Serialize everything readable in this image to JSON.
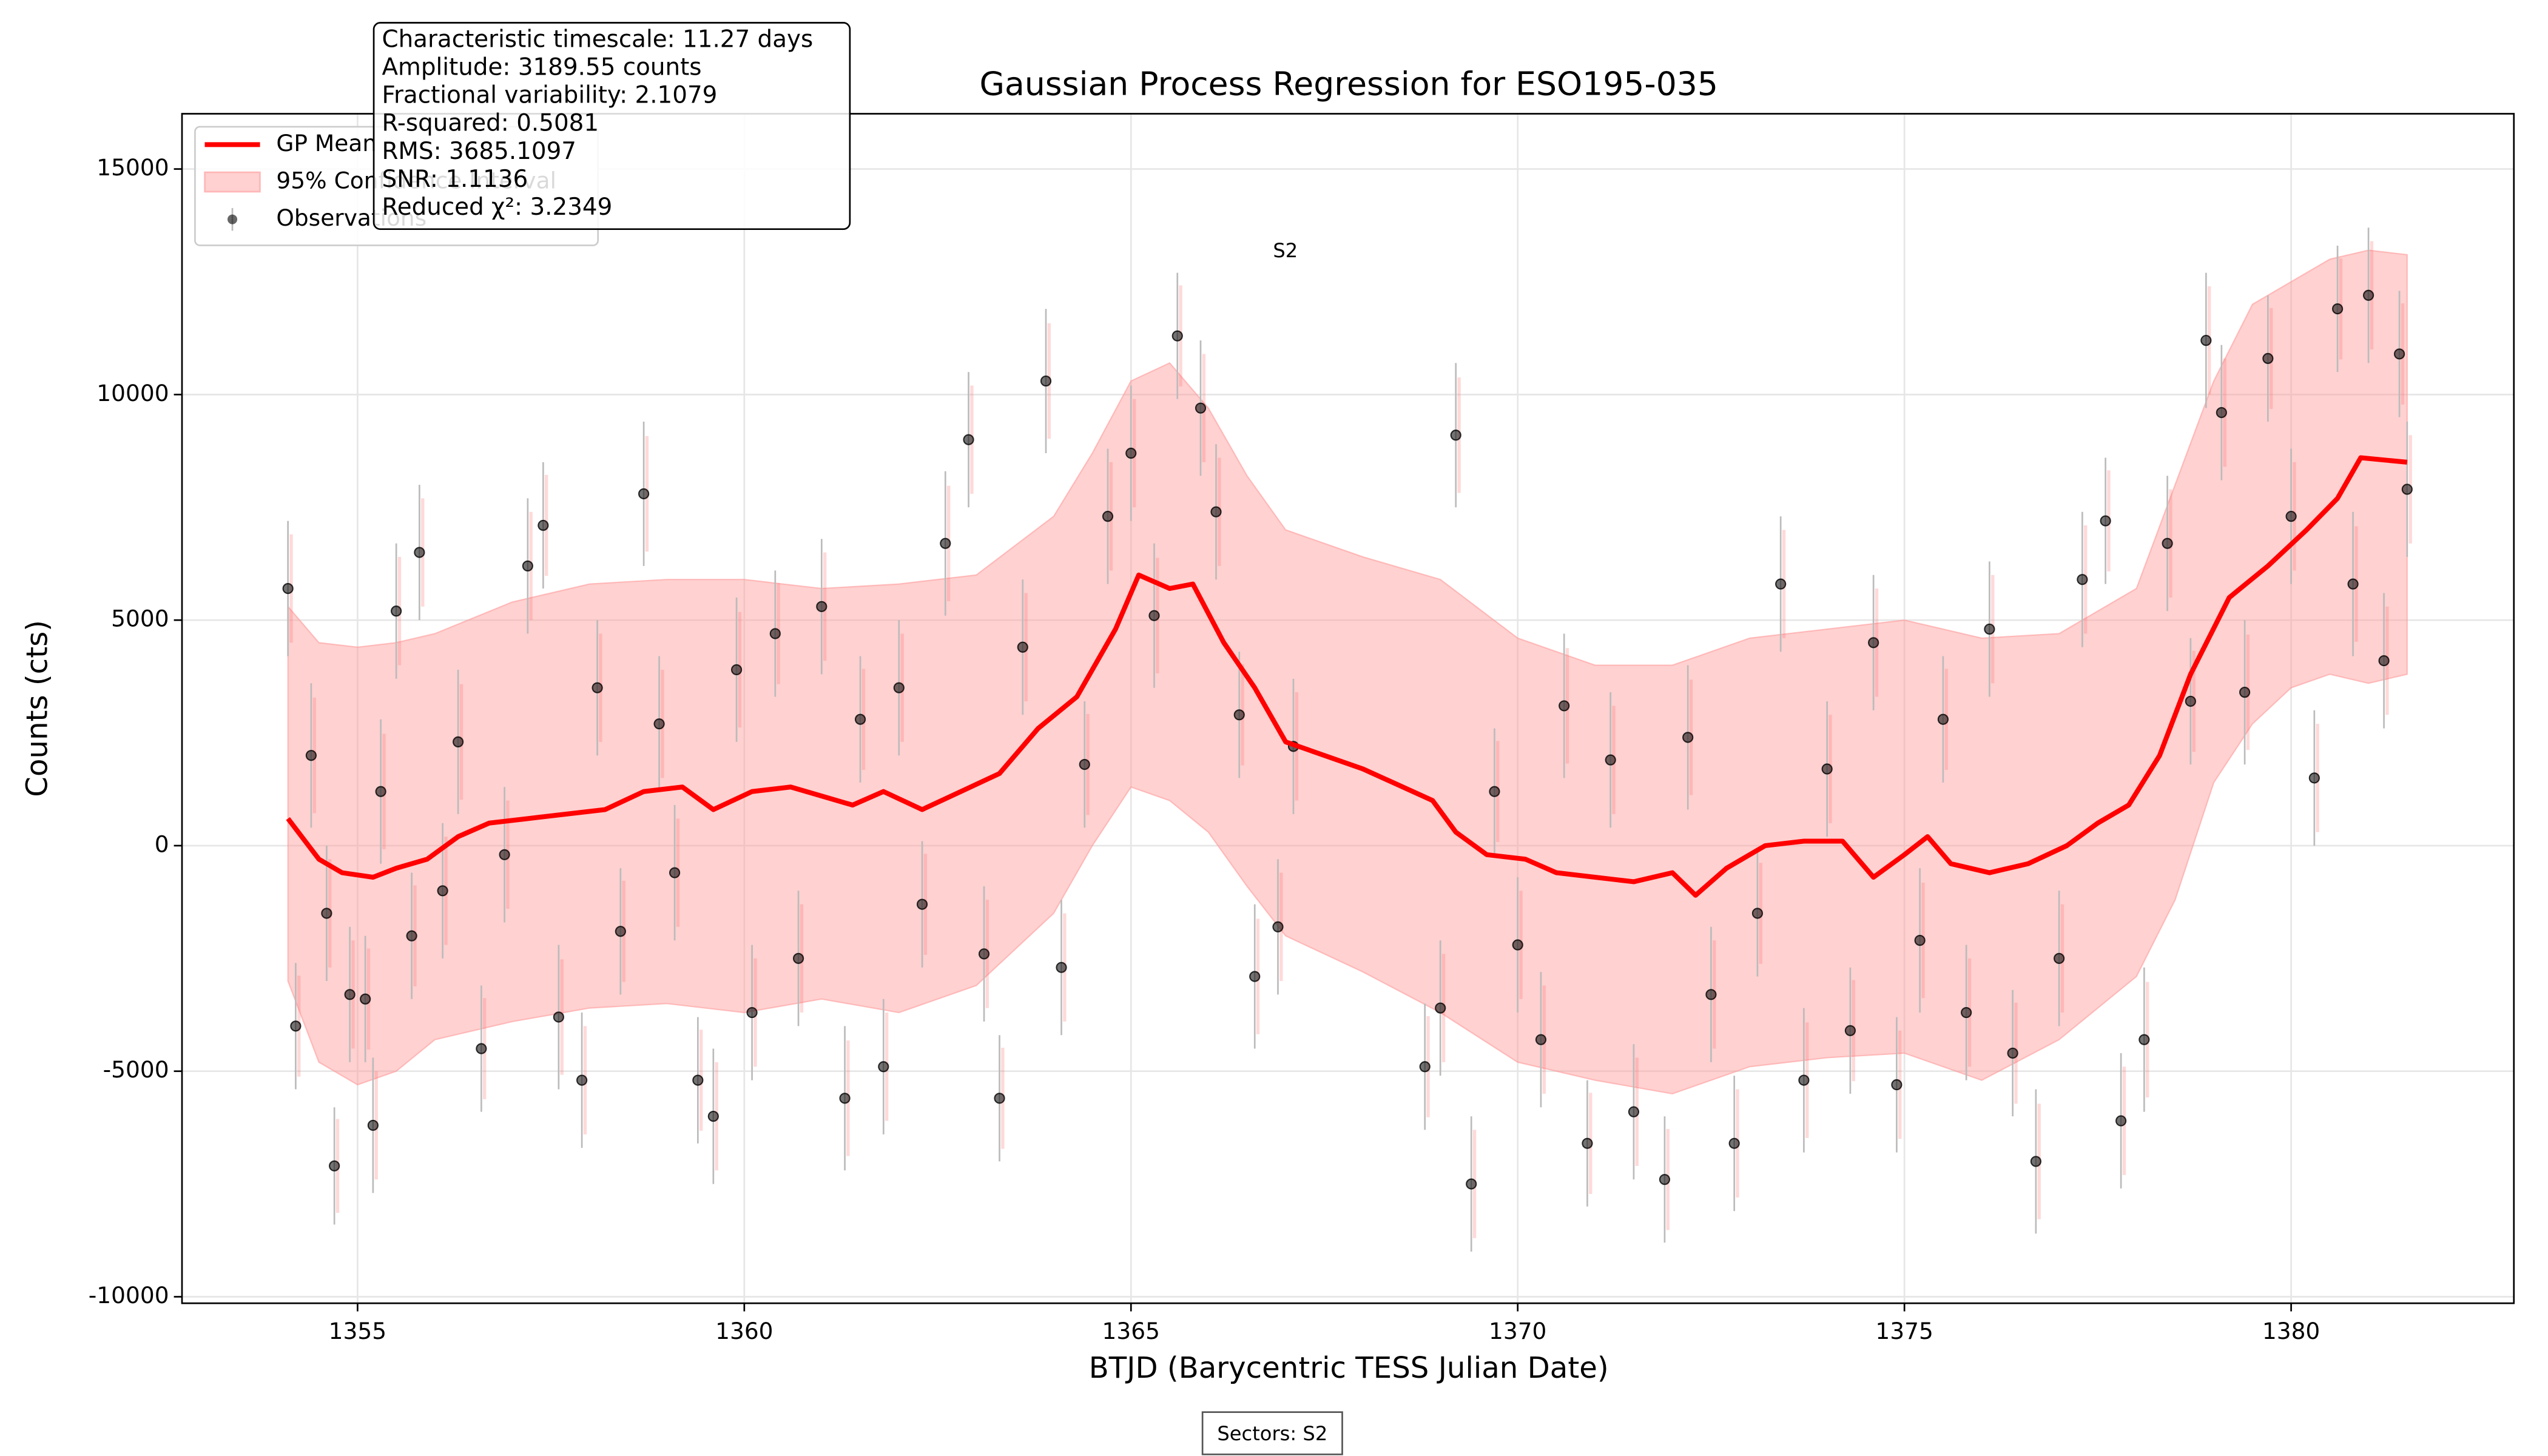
{
  "chart_data": {
    "type": "line",
    "title": "Gaussian Process Regression for ESO195-035",
    "x_label": "BTJD (Barycentric TESS Julian Date)",
    "y_label": "Counts (cts)",
    "xlim": [
      1352.73,
      1382.88
    ],
    "ylim": [
      -10144,
      16225
    ],
    "xticks": [
      1355,
      1360,
      1365,
      1370,
      1375,
      1380
    ],
    "yticks": [
      -10000,
      -5000,
      0,
      5000,
      10000,
      15000
    ],
    "grid": true,
    "legend": "upper left",
    "stats_box": [
      "Characteristic timescale: 11.27 days",
      "Amplitude: 3189.55 counts",
      "Fractional variability: 2.1079",
      "R-squared: 0.5081",
      "RMS: 3685.1097",
      "SNR: 1.1136",
      "Reduced χ²: 3.2349"
    ],
    "sector_label": "S2",
    "footer": "Sectors: S2",
    "series": [
      {
        "name": "GP Mean",
        "kind": "line",
        "color": "#ff0000",
        "x": [
          1354.1,
          1354.5,
          1354.8,
          1355.2,
          1355.5,
          1355.9,
          1356.3,
          1356.7,
          1357.2,
          1357.7,
          1358.2,
          1358.7,
          1359.2,
          1359.6,
          1360.1,
          1360.6,
          1361.0,
          1361.4,
          1361.8,
          1362.3,
          1362.8,
          1363.3,
          1363.8,
          1364.3,
          1364.8,
          1365.1,
          1365.5,
          1365.8,
          1366.2,
          1366.6,
          1367.0,
          1368.0,
          1368.9,
          1369.2,
          1369.6,
          1370.1,
          1370.5,
          1371.0,
          1371.5,
          1372.0,
          1372.3,
          1372.7,
          1373.2,
          1373.7,
          1374.2,
          1374.6,
          1375.0,
          1375.3,
          1375.6,
          1376.1,
          1376.6,
          1377.1,
          1377.5,
          1377.9,
          1378.3,
          1378.7,
          1379.2,
          1379.7,
          1380.2,
          1380.6,
          1380.9,
          1381.5
        ],
        "values": [
          600,
          -300,
          -600,
          -700,
          -500,
          -300,
          200,
          500,
          600,
          700,
          800,
          1200,
          1300,
          800,
          1200,
          1300,
          1100,
          900,
          1200,
          800,
          1200,
          1600,
          2600,
          3300,
          4800,
          6000,
          5700,
          5800,
          4500,
          3500,
          2300,
          1700,
          1000,
          300,
          -200,
          -300,
          -600,
          -700,
          -800,
          -600,
          -1100,
          -500,
          0,
          100,
          100,
          -700,
          -200,
          200,
          -400,
          -600,
          -400,
          0,
          500,
          900,
          2000,
          3800,
          5500,
          6200,
          7000,
          7700,
          8600,
          8500
        ]
      },
      {
        "name": "95% Confidence Interval",
        "kind": "band",
        "color": "#ff9999",
        "x": [
          1354.1,
          1354.5,
          1355.0,
          1355.5,
          1356.0,
          1357.0,
          1358.0,
          1359.0,
          1360.0,
          1361.0,
          1362.0,
          1363.0,
          1364.0,
          1364.5,
          1365.0,
          1365.5,
          1366.0,
          1366.5,
          1367.0,
          1368.0,
          1369.0,
          1370.0,
          1371.0,
          1372.0,
          1373.0,
          1374.0,
          1375.0,
          1376.0,
          1377.0,
          1378.0,
          1378.5,
          1379.0,
          1379.5,
          1380.0,
          1380.5,
          1381.0,
          1381.5
        ],
        "lower": [
          -3000,
          -4800,
          -5300,
          -5000,
          -4300,
          -3900,
          -3600,
          -3500,
          -3700,
          -3400,
          -3700,
          -3100,
          -1500,
          0,
          1300,
          1000,
          300,
          -900,
          -2000,
          -2800,
          -3700,
          -4800,
          -5200,
          -5500,
          -4900,
          -4700,
          -4600,
          -5200,
          -4300,
          -2900,
          -1200,
          1400,
          2700,
          3500,
          3800,
          3600,
          3800
        ],
        "upper": [
          5300,
          4500,
          4400,
          4500,
          4700,
          5400,
          5800,
          5900,
          5900,
          5700,
          5800,
          6000,
          7300,
          8700,
          10300,
          10700,
          9700,
          8200,
          7000,
          6400,
          5900,
          4600,
          4000,
          4000,
          4600,
          4800,
          5000,
          4600,
          4700,
          5700,
          8000,
          10300,
          12000,
          12500,
          13000,
          13200,
          13100
        ]
      },
      {
        "name": "Observations",
        "kind": "scatter",
        "color": "#000000",
        "x": [
          1354.1,
          1354.2,
          1354.4,
          1354.6,
          1354.7,
          1354.9,
          1355.1,
          1355.2,
          1355.3,
          1355.5,
          1355.7,
          1355.8,
          1356.1,
          1356.3,
          1356.6,
          1356.9,
          1357.2,
          1357.4,
          1357.6,
          1357.9,
          1358.1,
          1358.4,
          1358.7,
          1358.9,
          1359.1,
          1359.4,
          1359.6,
          1359.9,
          1360.1,
          1360.4,
          1360.7,
          1361.0,
          1361.3,
          1361.5,
          1361.8,
          1362.0,
          1362.3,
          1362.6,
          1362.9,
          1363.1,
          1363.3,
          1363.6,
          1363.9,
          1364.1,
          1364.4,
          1364.7,
          1365.0,
          1365.3,
          1365.6,
          1365.9,
          1366.1,
          1366.4,
          1366.6,
          1366.9,
          1367.1,
          1368.8,
          1369.0,
          1369.2,
          1369.4,
          1369.7,
          1370.0,
          1370.3,
          1370.6,
          1370.9,
          1371.2,
          1371.5,
          1371.9,
          1372.2,
          1372.5,
          1372.8,
          1373.1,
          1373.4,
          1373.7,
          1374.0,
          1374.3,
          1374.6,
          1374.9,
          1375.2,
          1375.5,
          1375.8,
          1376.1,
          1376.4,
          1376.7,
          1377.0,
          1377.3,
          1377.6,
          1377.8,
          1378.1,
          1378.4,
          1378.7,
          1378.9,
          1379.1,
          1379.4,
          1379.7,
          1380.0,
          1380.3,
          1380.6,
          1380.8,
          1381.0,
          1381.2,
          1381.4,
          1381.5
        ],
        "values": [
          5700,
          -4000,
          2000,
          -1500,
          -7100,
          -3300,
          -3400,
          -6200,
          1200,
          5200,
          -2000,
          6500,
          -1000,
          2300,
          -4500,
          -200,
          6200,
          7100,
          -3800,
          -5200,
          3500,
          -1900,
          7800,
          2700,
          -600,
          -5200,
          -6000,
          3900,
          -3700,
          4700,
          -2500,
          5300,
          -5600,
          2800,
          -4900,
          3500,
          -1300,
          6700,
          9000,
          -2400,
          -5600,
          4400,
          10300,
          -2700,
          1800,
          7300,
          8700,
          5100,
          11300,
          9700,
          7400,
          2900,
          -2900,
          -1800,
          2200,
          -4900,
          -3600,
          9100,
          -7500,
          1200,
          -2200,
          -4300,
          3100,
          -6600,
          1900,
          -5900,
          -7400,
          2400,
          -3300,
          -6600,
          -1500,
          5800,
          -5200,
          1700,
          -4100,
          4500,
          -5300,
          -2100,
          2800,
          -3700,
          4800,
          -4600,
          -7000,
          -2500,
          5900,
          7200,
          -6100,
          -4300,
          6700,
          3200,
          11200,
          9600,
          3400,
          10800,
          7300,
          1500,
          11900,
          5800,
          12200,
          4100,
          10900,
          7900
        ],
        "errors": [
          1500,
          1400,
          1600,
          1500,
          1300,
          1500,
          1400,
          1500,
          1600,
          1500,
          1400,
          1500,
          1500,
          1600,
          1400,
          1500,
          1500,
          1400,
          1600,
          1500,
          1500,
          1400,
          1600,
          1500,
          1500,
          1400,
          1500,
          1600,
          1500,
          1400,
          1500,
          1500,
          1600,
          1400,
          1500,
          1500,
          1400,
          1600,
          1500,
          1500,
          1400,
          1500,
          1600,
          1500,
          1400,
          1500,
          1500,
          1600,
          1400,
          1500,
          1500,
          1400,
          1600,
          1500,
          1500,
          1400,
          1500,
          1600,
          1500,
          1400,
          1500,
          1500,
          1600,
          1400,
          1500,
          1500,
          1400,
          1600,
          1500,
          1500,
          1400,
          1500,
          1600,
          1500,
          1400,
          1500,
          1500,
          1600,
          1400,
          1500,
          1500,
          1400,
          1600,
          1500,
          1500,
          1400,
          1500,
          1600,
          1500,
          1400,
          1500,
          1500,
          1600,
          1400,
          1500,
          1500,
          1400,
          1600,
          1500,
          1500,
          1400,
          1500
        ]
      }
    ]
  }
}
